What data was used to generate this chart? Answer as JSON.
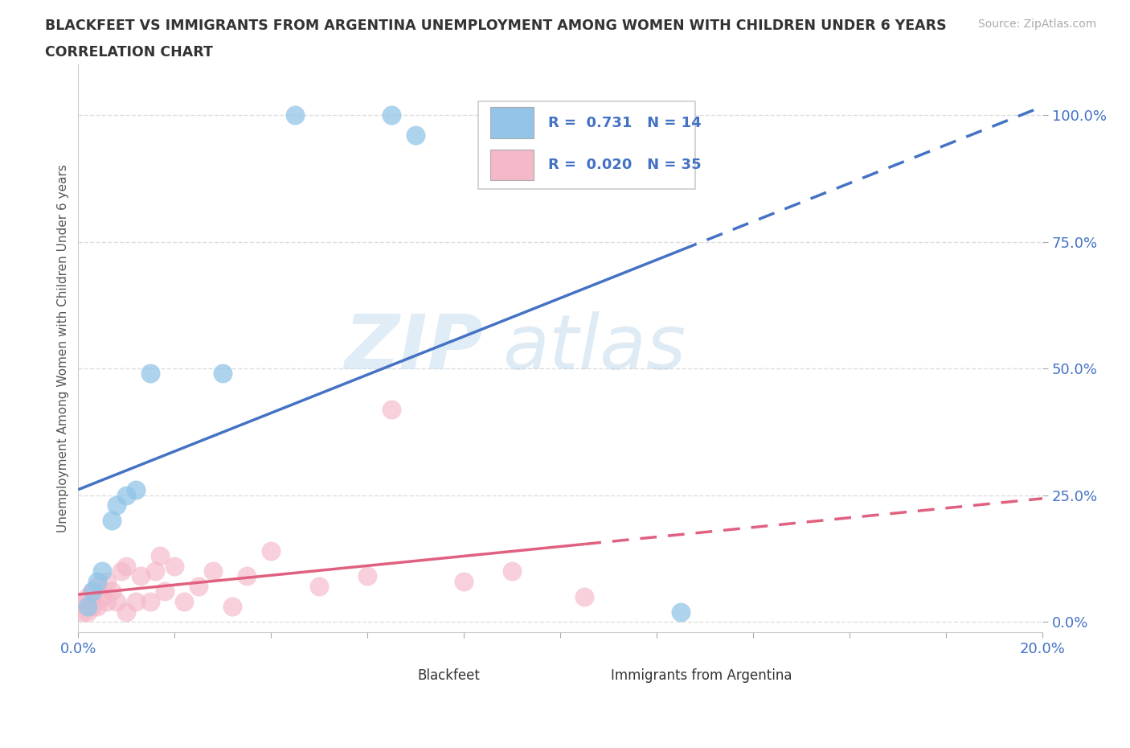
{
  "title_line1": "BLACKFEET VS IMMIGRANTS FROM ARGENTINA UNEMPLOYMENT AMONG WOMEN WITH CHILDREN UNDER 6 YEARS",
  "title_line2": "CORRELATION CHART",
  "source": "Source: ZipAtlas.com",
  "ylabel": "Unemployment Among Women with Children Under 6 years",
  "xlim": [
    0.0,
    0.2
  ],
  "ylim": [
    -0.02,
    1.1
  ],
  "yticks": [
    0.0,
    0.25,
    0.5,
    0.75,
    1.0
  ],
  "ytick_labels": [
    "0.0%",
    "25.0%",
    "50.0%",
    "75.0%",
    "100.0%"
  ],
  "xtick_vals": [
    0.0,
    0.02,
    0.04,
    0.06,
    0.08,
    0.1,
    0.12,
    0.14,
    0.16,
    0.18,
    0.2
  ],
  "xtick_labels": [
    "0.0%",
    "",
    "",
    "",
    "",
    "",
    "",
    "",
    "",
    "",
    "20.0%"
  ],
  "background_color": "#ffffff",
  "grid_color": "#dddddd",
  "watermark_zip": "ZIP",
  "watermark_atlas": "atlas",
  "legend_R1": "0.731",
  "legend_N1": "14",
  "legend_R2": "0.020",
  "legend_N2": "35",
  "blackfeet_color": "#92c5e8",
  "argentina_color": "#f4b8c8",
  "line_blue_color": "#4472c4",
  "line_pink_color": "#e06080",
  "blackfeet_x": [
    0.002,
    0.003,
    0.004,
    0.005,
    0.007,
    0.008,
    0.01,
    0.012,
    0.015,
    0.03,
    0.045,
    0.065,
    0.07,
    0.125
  ],
  "blackfeet_y": [
    0.03,
    0.06,
    0.08,
    0.1,
    0.2,
    0.23,
    0.25,
    0.26,
    0.49,
    0.49,
    1.0,
    1.0,
    0.96,
    0.02
  ],
  "argentina_x": [
    0.001,
    0.001,
    0.002,
    0.002,
    0.003,
    0.003,
    0.004,
    0.004,
    0.005,
    0.006,
    0.006,
    0.007,
    0.008,
    0.009,
    0.01,
    0.01,
    0.012,
    0.013,
    0.015,
    0.016,
    0.017,
    0.018,
    0.02,
    0.022,
    0.025,
    0.028,
    0.032,
    0.035,
    0.04,
    0.05,
    0.06,
    0.065,
    0.08,
    0.105,
    0.09
  ],
  "argentina_y": [
    0.02,
    0.04,
    0.02,
    0.05,
    0.03,
    0.06,
    0.03,
    0.07,
    0.05,
    0.04,
    0.08,
    0.06,
    0.04,
    0.1,
    0.02,
    0.11,
    0.04,
    0.09,
    0.04,
    0.1,
    0.13,
    0.06,
    0.11,
    0.04,
    0.07,
    0.1,
    0.03,
    0.09,
    0.14,
    0.07,
    0.09,
    0.42,
    0.08,
    0.05,
    0.1
  ]
}
